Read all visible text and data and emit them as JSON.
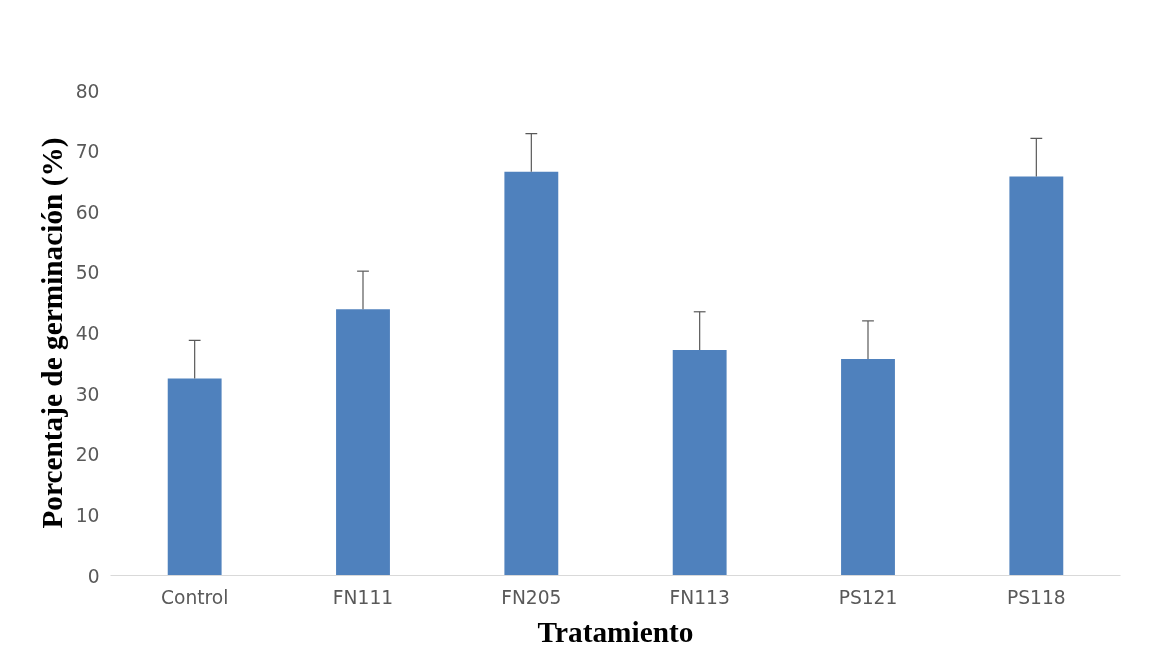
{
  "chart_data": {
    "type": "bar",
    "xlabel": "Tratamiento",
    "ylabel": "Porcentaje de germinación (%)",
    "categories": [
      "Control",
      "FN111",
      "FN205",
      "FN113",
      "PS121",
      "PS118"
    ],
    "values": [
      32.5,
      43.9,
      66.6,
      37.2,
      35.7,
      65.8
    ],
    "errors": [
      [
        32.5,
        38.8
      ],
      [
        43.9,
        50.2
      ],
      [
        66.6,
        72.9
      ],
      [
        37.2,
        43.5
      ],
      [
        35.7,
        42.0
      ],
      [
        65.8,
        72.1
      ]
    ],
    "color": "#4f81bd",
    "ylim": [
      0,
      80
    ],
    "yticks": [
      0,
      10,
      20,
      30,
      40,
      50,
      60,
      70,
      80
    ],
    "grid": false
  }
}
